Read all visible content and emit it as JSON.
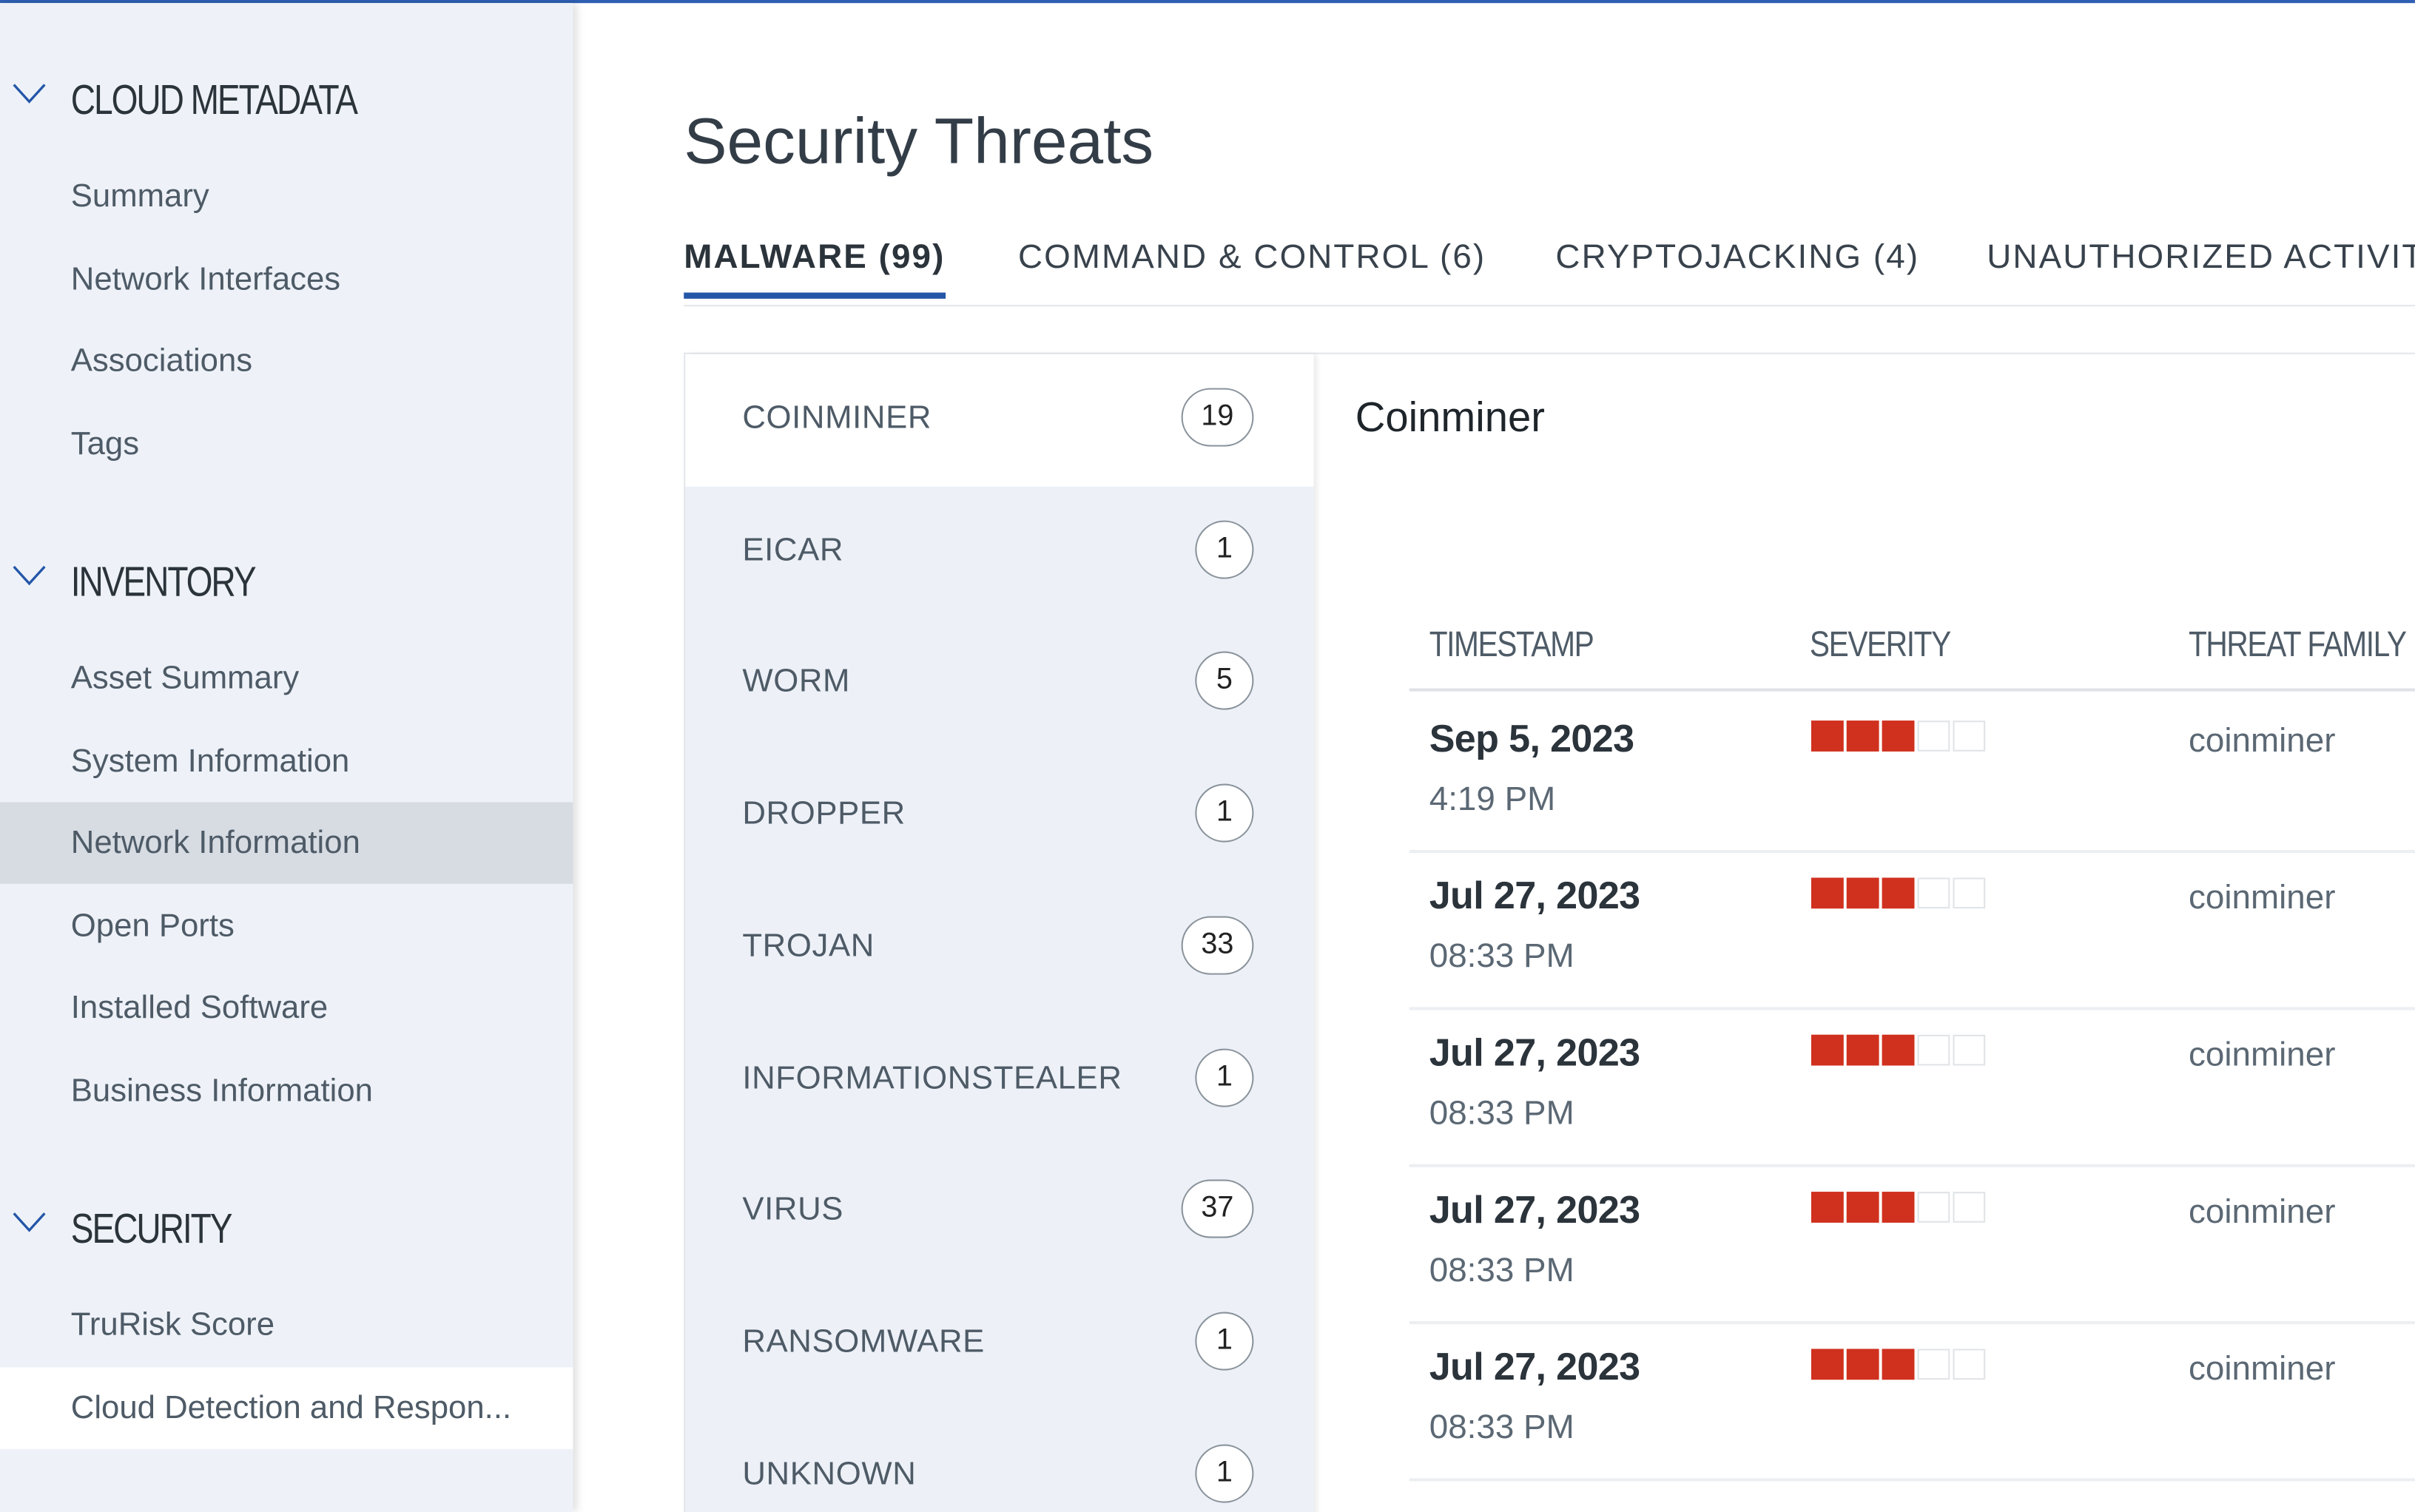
{
  "sidebar": {
    "sections": [
      {
        "title": "CLOUD METADATA",
        "items": [
          "Summary",
          "Network Interfaces",
          "Associations",
          "Tags"
        ]
      },
      {
        "title": "INVENTORY",
        "items": [
          "Asset Summary",
          "System Information",
          "Network Information",
          "Open Ports",
          "Installed Software",
          "Business Information"
        ]
      },
      {
        "title": "SECURITY",
        "items": [
          "TruRisk Score",
          "Cloud Detection and Respon..."
        ]
      }
    ],
    "highlighted_item": "Network Information",
    "selected_item": "Cloud Detection and Respon..."
  },
  "page": {
    "title": "Security Threats"
  },
  "tabs": [
    "MALWARE (99)",
    "COMMAND & CONTROL (6)",
    "CRYPTOJACKING (4)",
    "UNAUTHORIZED ACTIVIT"
  ],
  "active_tab": "MALWARE (99)",
  "categories": [
    {
      "label": "COINMINER",
      "count": "19"
    },
    {
      "label": "EICAR",
      "count": "1"
    },
    {
      "label": "WORM",
      "count": "5"
    },
    {
      "label": "DROPPER",
      "count": "1"
    },
    {
      "label": "TROJAN",
      "count": "33"
    },
    {
      "label": "INFORMATIONSTEALER",
      "count": "1"
    },
    {
      "label": "VIRUS",
      "count": "37"
    },
    {
      "label": "RANSOMWARE",
      "count": "1"
    },
    {
      "label": "UNKNOWN",
      "count": "1"
    }
  ],
  "detail": {
    "title": "Coinminer",
    "columns": [
      "TIMESTAMP",
      "SEVERITY",
      "THREAT FAMILY"
    ],
    "severity_max": 5,
    "severity_color": "#d0311f",
    "rows": [
      {
        "date": "Sep 5, 2023",
        "time": "4:19 PM",
        "severity": 3,
        "family": "coinminer"
      },
      {
        "date": "Jul 27, 2023",
        "time": "08:33 PM",
        "severity": 3,
        "family": "coinminer"
      },
      {
        "date": "Jul 27, 2023",
        "time": "08:33 PM",
        "severity": 3,
        "family": "coinminer"
      },
      {
        "date": "Jul 27, 2023",
        "time": "08:33 PM",
        "severity": 3,
        "family": "coinminer"
      },
      {
        "date": "Jul 27, 2023",
        "time": "08:33 PM",
        "severity": 3,
        "family": "coinminer"
      }
    ]
  },
  "colors": {
    "accent": "#2456a8",
    "sidebar_bg": "#eef2f8"
  }
}
